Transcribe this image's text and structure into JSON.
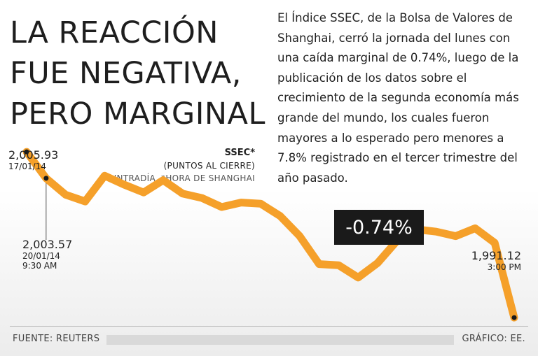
{
  "headline": {
    "line1": "LA REACCIÓN",
    "line2": "FUE NEGATIVA,",
    "line3": "PERO MARGINAL"
  },
  "body_text": "El Índice SSEC, de la Bolsa de Valores de Shanghai, cerró la jornada del lunes con una caída marginal de 0.74%, luego de la publicación de los datos sobre el crecimiento de la segunda economía más grande del mundo, los cuales fueron mayores a lo esperado pero menores a 7.8% registrado en el tercer trimestre del año pasado.",
  "series_label": "SSEC*",
  "series_unit": "(PUNTOS AL CIERRE)",
  "notes": [
    "*INTRADÍA",
    "*HORA DE SHANGHAI"
  ],
  "change": "-0.74%",
  "footer": {
    "source": "FUENTE: REUTERS",
    "credit": "GRÁFICO: EE."
  },
  "colors": {
    "line": "#f5a02a",
    "marker": "#1a1a1a",
    "badge": "#1a1a1a"
  },
  "chart_data": {
    "type": "line",
    "title": "",
    "xlabel": "",
    "ylabel": "",
    "grid": false,
    "legend": "none",
    "ylim": [
      1987,
      2007
    ],
    "series": [
      {
        "values": [
          2005.93,
          2003.57,
          2002.1,
          2001.5,
          2003.8,
          2003.0,
          2002.3,
          2003.4,
          2002.2,
          2001.8,
          2001.0,
          2001.4,
          2001.3,
          2000.2,
          1998.4,
          1995.9,
          1995.8,
          1994.7,
          1996.0,
          1998.0,
          1999.0,
          1998.8,
          1998.4,
          1999.1,
          1997.8,
          1991.12
        ]
      }
    ],
    "annotations": [
      {
        "value": "2,005.93",
        "date": "17/01/14",
        "time": ""
      },
      {
        "value": "2,003.57",
        "date": "20/01/14",
        "time": "9:30 AM"
      },
      {
        "value": "1,991.12",
        "date": "",
        "time": "3:00 PM"
      }
    ]
  }
}
